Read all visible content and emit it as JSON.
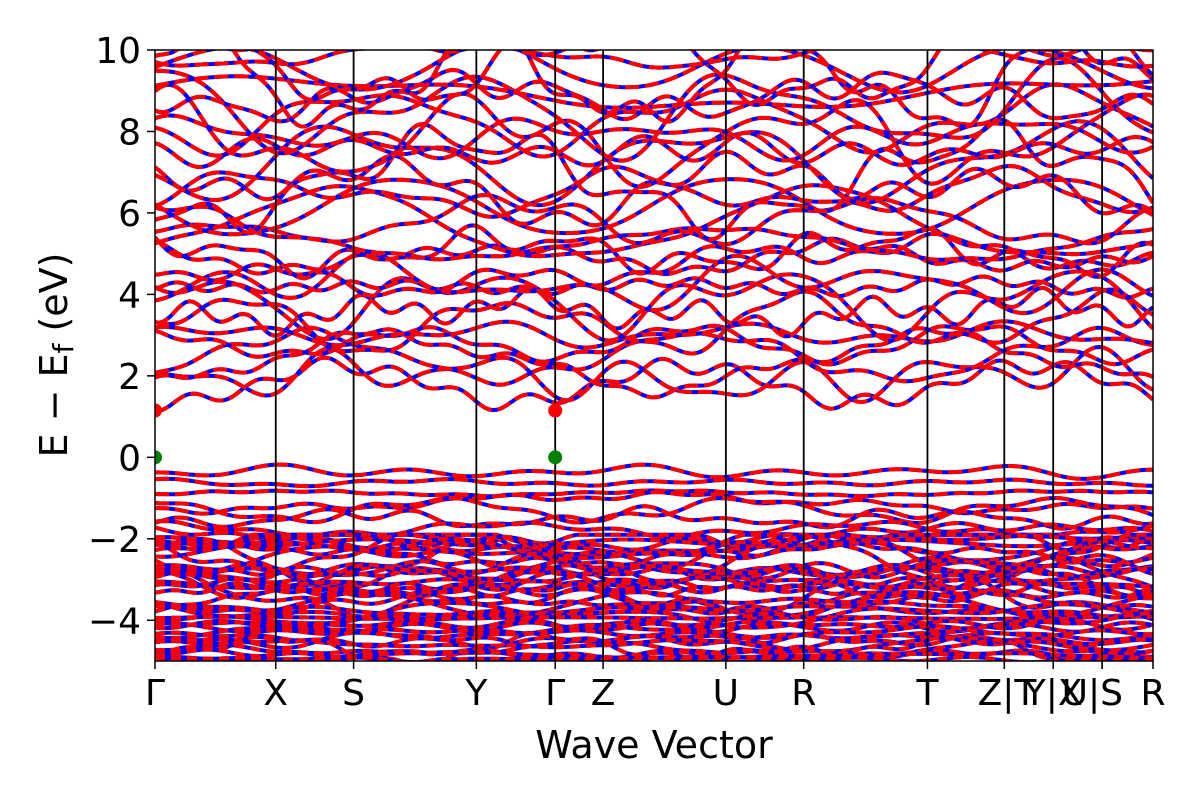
{
  "chart_data": {
    "type": "line",
    "title": "",
    "xlabel": "Wave Vector",
    "ylabel": "E − E_f (eV)",
    "ylabel_main": "E − E",
    "ylabel_sub": "f",
    "ylabel_unit": " (eV)",
    "ylim": [
      -5,
      10
    ],
    "yticks": [
      -4,
      -2,
      0,
      2,
      4,
      6,
      8,
      10
    ],
    "ytick_labels": [
      "−4",
      "−2",
      "0",
      "2",
      "4",
      "6",
      "8",
      "10"
    ],
    "xlim": [
      0,
      1
    ],
    "kpoints": [
      {
        "label": "Γ",
        "x": 0.0
      },
      {
        "label": "X",
        "x": 0.121
      },
      {
        "label": "S",
        "x": 0.199
      },
      {
        "label": "Y",
        "x": 0.322
      },
      {
        "label": "Γ",
        "x": 0.401
      },
      {
        "label": "Z",
        "x": 0.449
      },
      {
        "label": "U",
        "x": 0.572
      },
      {
        "label": "R",
        "x": 0.65
      },
      {
        "label": "T",
        "x": 0.774
      },
      {
        "label": "Z",
        "x": 0.851
      },
      {
        "label": "|T",
        "x": 0.851
      },
      {
        "label": "Y|X",
        "x": 0.9
      },
      {
        "label": "U|",
        "x": 0.949
      },
      {
        "label": "S",
        "x": 0.949
      },
      {
        "label": "R",
        "x": 1.0
      }
    ],
    "vertical_lines_x": [
      0.121,
      0.199,
      0.322,
      0.401,
      0.449,
      0.572,
      0.65,
      0.774,
      0.851,
      0.9,
      0.949
    ],
    "series": [
      {
        "color": "#0000ff",
        "style": "solid"
      },
      {
        "color": "#ff0000",
        "style": "dashed"
      }
    ],
    "vbm_points": [
      {
        "x": 0.0,
        "y": 0.0
      },
      {
        "x": 0.401,
        "y": 0.0
      }
    ],
    "vbm_color": "#008000",
    "cbm_points": [
      {
        "x": 0.0,
        "y": 1.15
      },
      {
        "x": 0.401,
        "y": 1.15
      }
    ],
    "cbm_color": "#ff0000",
    "band_color_up": "#0000ff",
    "band_color_down": "#ff0000"
  }
}
